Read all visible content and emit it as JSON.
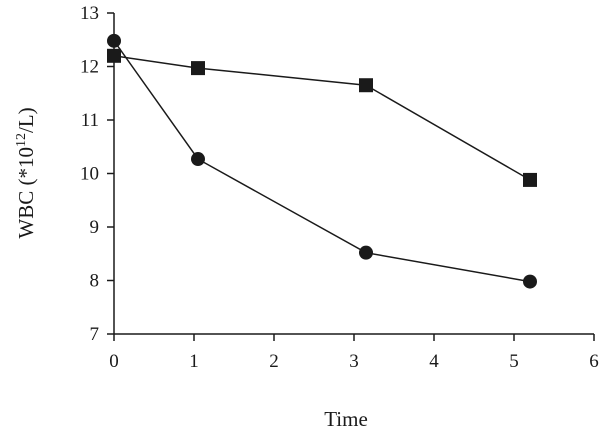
{
  "chart_data": {
    "type": "line",
    "title": "",
    "xlabel": "Time",
    "ylabel_main": "WBC (*10",
    "ylabel_sup": "12",
    "ylabel_tail": "/L)",
    "xlim": [
      0,
      6
    ],
    "ylim": [
      7,
      13
    ],
    "x_ticks": [
      0,
      1,
      2,
      3,
      4,
      5,
      6
    ],
    "y_ticks": [
      7,
      8,
      9,
      10,
      11,
      12,
      13
    ],
    "grid": false,
    "series": [
      {
        "marker": "square",
        "x": [
          0,
          1.05,
          3.15,
          5.2
        ],
        "y": [
          12.2,
          11.97,
          11.65,
          9.88
        ]
      },
      {
        "marker": "circle",
        "x": [
          0,
          1.05,
          3.15,
          5.2
        ],
        "y": [
          12.48,
          10.27,
          8.52,
          7.98
        ]
      }
    ]
  }
}
